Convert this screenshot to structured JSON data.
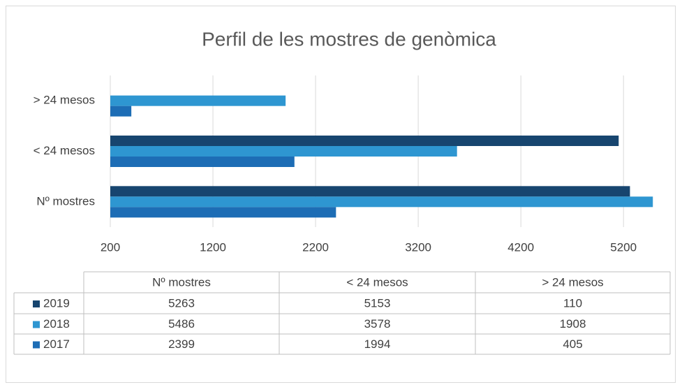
{
  "chart_data": {
    "type": "bar",
    "orientation": "horizontal",
    "title": "Perfil de les mostres de genòmica",
    "categories": [
      "Nº mostres",
      "< 24 mesos",
      "> 24 mesos"
    ],
    "series": [
      {
        "name": "2019",
        "color": "#17456f",
        "values": [
          5263,
          5153,
          110
        ]
      },
      {
        "name": "2018",
        "color": "#2e96d1",
        "values": [
          5486,
          3578,
          1908
        ]
      },
      {
        "name": "2017",
        "color": "#1d6db5",
        "values": [
          2399,
          1994,
          405
        ]
      }
    ],
    "xlim": [
      200,
      5600
    ],
    "xticks": [
      200,
      1200,
      2200,
      3200,
      4200,
      5200
    ],
    "grid": true,
    "data_table": true
  }
}
